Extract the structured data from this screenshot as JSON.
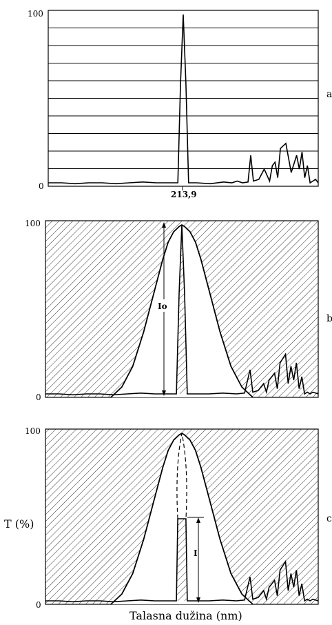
{
  "chart_data": [
    {
      "type": "line",
      "panel_label": "a",
      "ylim": [
        0,
        100
      ],
      "y_tick_labels": [
        "0",
        "100"
      ],
      "x_tick_label": "213,9",
      "grid": "horizontal",
      "series": [
        {
          "x": [
            0,
            5,
            10,
            15,
            20,
            25,
            30,
            35,
            40,
            45,
            48,
            49,
            50,
            51,
            52,
            55,
            60,
            65,
            68,
            70,
            72,
            74,
            75,
            76,
            78,
            80,
            82,
            83,
            84,
            85,
            86,
            88,
            90,
            92,
            93,
            94,
            95,
            96,
            97,
            98,
            99,
            100
          ],
          "y": [
            2,
            2,
            1.5,
            2,
            2,
            1.5,
            2,
            2.5,
            2,
            2,
            2,
            60,
            100,
            60,
            2,
            2,
            1.5,
            2.5,
            2,
            3,
            2,
            2.5,
            18,
            3,
            4,
            10,
            3,
            12,
            14,
            5,
            22,
            25,
            8,
            18,
            10,
            20,
            5,
            12,
            2,
            3,
            4,
            2
          ]
        }
      ]
    },
    {
      "type": "line",
      "panel_label": "b",
      "ylim": [
        0,
        100
      ],
      "y_tick_labels": [
        "0",
        "100"
      ],
      "annotations": [
        "Io"
      ],
      "series": [
        {
          "x": [
            0,
            5,
            10,
            15,
            20,
            25,
            30,
            35,
            40,
            45,
            48,
            49,
            50,
            51,
            52,
            55,
            60,
            65,
            70,
            73,
            75,
            76,
            78,
            80,
            81,
            82,
            84,
            85,
            86,
            88,
            89,
            90,
            91,
            92,
            93,
            94,
            95,
            96,
            97,
            98,
            100
          ],
          "y": [
            2,
            2,
            1.5,
            2,
            2,
            1.5,
            2,
            2.5,
            2,
            2,
            2,
            60,
            100,
            60,
            2,
            2,
            2,
            2.5,
            2,
            2.5,
            16,
            3,
            4,
            8,
            3,
            10,
            14,
            5,
            20,
            25,
            8,
            18,
            10,
            20,
            5,
            12,
            2,
            3,
            2,
            3,
            2
          ]
        },
        {
          "x": [
            24,
            28,
            32,
            36,
            40,
            43,
            45,
            47,
            49,
            50,
            51,
            53,
            55,
            57,
            60,
            64,
            68,
            72,
            76
          ],
          "y": [
            0,
            6,
            18,
            38,
            62,
            80,
            90,
            96,
            99,
            100,
            99,
            96,
            90,
            80,
            62,
            38,
            18,
            6,
            0
          ]
        }
      ]
    },
    {
      "type": "line",
      "panel_label": "c",
      "ylim": [
        0,
        100
      ],
      "y_tick_labels": [
        "0",
        "100"
      ],
      "xlabel": "Talasna dužina (nm)",
      "ylabel": "T (%)",
      "annotations": [
        "I"
      ],
      "series": [
        {
          "x": [
            0,
            5,
            10,
            15,
            20,
            25,
            30,
            35,
            40,
            45,
            48,
            48.5,
            51.5,
            52,
            55,
            60,
            65,
            70,
            73,
            75,
            76,
            78,
            80,
            81,
            82,
            84,
            85,
            86,
            88,
            89,
            90,
            91,
            92,
            93,
            94,
            95,
            96,
            97,
            98,
            100
          ],
          "y": [
            2,
            2,
            1.5,
            2,
            2,
            1.5,
            2,
            2.5,
            2,
            2,
            2,
            50,
            50,
            2,
            2,
            2,
            2.5,
            2,
            2.5,
            16,
            3,
            4,
            8,
            3,
            10,
            14,
            5,
            20,
            25,
            8,
            18,
            10,
            20,
            5,
            12,
            2,
            3,
            2,
            3,
            2
          ]
        },
        {
          "x": [
            24,
            28,
            32,
            36,
            40,
            43,
            45,
            47,
            49,
            50,
            51,
            53,
            55,
            57,
            60,
            64,
            68,
            72,
            76
          ],
          "y": [
            0,
            6,
            18,
            38,
            62,
            80,
            90,
            96,
            99,
            100,
            99,
            96,
            90,
            80,
            62,
            38,
            18,
            6,
            0
          ]
        }
      ]
    }
  ]
}
